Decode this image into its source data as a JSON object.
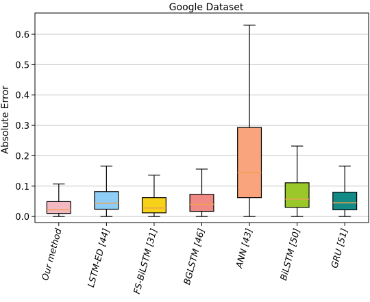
{
  "chart_data": {
    "type": "box",
    "title": "Google Dataset",
    "xlabel": "",
    "ylabel": "Absolute Error",
    "ylim": [
      -0.02,
      0.67
    ],
    "yticks": [
      0.0,
      0.1,
      0.2,
      0.3,
      0.4,
      0.5,
      0.6
    ],
    "ytick_labels": [
      "0.0",
      "0.1",
      "0.2",
      "0.3",
      "0.4",
      "0.5",
      "0.6"
    ],
    "grid": "horizontal",
    "categories": [
      "Our method",
      "LSTM-ED [44]",
      "FS-BiLSTM [31]",
      "BGLSTM [46]",
      "ANN [43]",
      "BiLSTM [50]",
      "GRU [51]"
    ],
    "boxes": [
      {
        "min": 0.0,
        "q1": 0.01,
        "median": 0.022,
        "q3": 0.049,
        "max": 0.107,
        "color": "#f4b8c2"
      },
      {
        "min": 0.0,
        "q1": 0.024,
        "median": 0.044,
        "q3": 0.082,
        "max": 0.166,
        "color": "#8ecdf5"
      },
      {
        "min": 0.0,
        "q1": 0.012,
        "median": 0.028,
        "q3": 0.062,
        "max": 0.136,
        "color": "#f7d21a"
      },
      {
        "min": 0.0,
        "q1": 0.017,
        "median": 0.04,
        "q3": 0.073,
        "max": 0.156,
        "color": "#ef8a84"
      },
      {
        "min": 0.0,
        "q1": 0.062,
        "median": 0.145,
        "q3": 0.293,
        "max": 0.63,
        "color": "#f9a47c"
      },
      {
        "min": 0.0,
        "q1": 0.03,
        "median": 0.057,
        "q3": 0.111,
        "max": 0.232,
        "color": "#9ac82b"
      },
      {
        "min": 0.0,
        "q1": 0.022,
        "median": 0.045,
        "q3": 0.08,
        "max": 0.166,
        "color": "#138a85"
      }
    ],
    "median_color": "#f0a050"
  }
}
